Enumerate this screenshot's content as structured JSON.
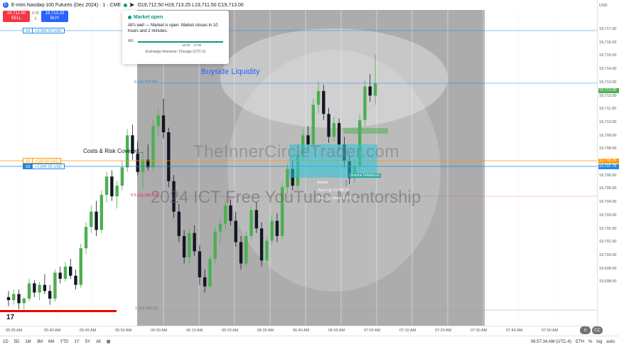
{
  "header": {
    "symbol_icon": "E",
    "symbol_text": "E-mini Nasdaq-100 Futures (Dec 2024) · 1 · CME",
    "ohlc": "O19,712.50 H19,713.25 L19,711.50 C19,713.00",
    "status_color": "#089981"
  },
  "trade": {
    "sell_price": "19,712.50",
    "sell_label": "SELL",
    "spread": "0.75",
    "buy_price": "19,713.25",
    "buy_label": "BUY",
    "qty": "2"
  },
  "tooltip": {
    "title": "Market open",
    "body": "All's well — Market is open. Market closes in 10 hours and 2 minutes.",
    "day": "MN",
    "hour1": "16:00",
    "hour2": "17:00",
    "timezone": "Exchange timezone: Chicago (UTC-5)"
  },
  "positions": {
    "top": {
      "qty": "18",
      "value": "+3,300.00 USD",
      "color": "#1e88e5"
    },
    "tp": {
      "qty": "18",
      "value": "+150.00 USD",
      "color": "#ff9800"
    },
    "entry": {
      "qty": "18",
      "value": "+1,840.00 USD",
      "color": "#1e88e5"
    }
  },
  "annotations": {
    "buyside": "Buyside Liquidity",
    "costs": "Costs & Risk Covered...",
    "fib0": "0 (19,713.50)",
    "fib05": "0.5 (19,706.50)",
    "fib1": "1 (19,698.25)",
    "fvg": "Volume Imbalance",
    "ashwin": "Ashwin",
    "buy_note": "Buy 6 @ 19,708.25",
    "key_note": "Key Sell Stop 19,707.00"
  },
  "watermark": {
    "site": "TheInnerCircleTrader.com",
    "course": "2024 ICT Free YouTube Mentorship"
  },
  "price_axis": {
    "currency": "USD",
    "labels": [
      "19,717.00",
      "19,716.00",
      "19,715.00",
      "19,714.00",
      "19,713.00",
      "19,712.00",
      "19,711.00",
      "19,710.00",
      "19,709.00",
      "19,708.00",
      "19,707.00",
      "19,706.00",
      "19,705.00",
      "19,704.00",
      "19,703.00",
      "19,702.00",
      "19,701.00",
      "19,700.00",
      "19,699.00",
      "19,698.00"
    ],
    "current": "19,713.00",
    "tp_tag": "19,708.25",
    "entry_tag": "19,707.75"
  },
  "time_axis": [
    "05:35 AM",
    "05:40 AM",
    "05:45 AM",
    "05:50 AM",
    "06:00 AM",
    "06:10 AM",
    "06:20 AM",
    "06:30 AM",
    "06:40 AM",
    "06:50 AM",
    "07:00 AM",
    "07:10 AM",
    "07:20 AM",
    "07:30 AM",
    "07:40 AM",
    "07:50 AM"
  ],
  "bottom": {
    "ranges": [
      "1D",
      "5D",
      "1M",
      "3M",
      "6M",
      "YTD",
      "1Y",
      "5Y",
      "All"
    ],
    "clock": "06:57:34 AM (UTC-4)",
    "session": "ETH",
    "pct": "%",
    "log": "log",
    "auto": "auto"
  },
  "video": {
    "pause": "II",
    "cc": "CC"
  },
  "tv_logo": "17",
  "chart_data": {
    "type": "candlestick",
    "y_range": [
      19697.5,
      19718
    ],
    "candles": [
      [
        19699.0,
        19699.4,
        19698.4,
        19698.8
      ],
      [
        19698.8,
        19699.5,
        19698.5,
        19699.2
      ],
      [
        19699.2,
        19699.5,
        19698.2,
        19698.6
      ],
      [
        19698.6,
        19699.0,
        19698.0,
        19698.9
      ],
      [
        19698.9,
        19700.2,
        19698.7,
        19699.9
      ],
      [
        19699.9,
        19700.1,
        19699.0,
        19699.3
      ],
      [
        19699.3,
        19700.0,
        19698.8,
        19699.8
      ],
      [
        19699.8,
        19700.5,
        19699.2,
        19699.4
      ],
      [
        19699.4,
        19699.8,
        19698.5,
        19698.9
      ],
      [
        19698.9,
        19700.8,
        19698.7,
        19700.6
      ],
      [
        19700.6,
        19701.0,
        19699.9,
        19700.2
      ],
      [
        19700.2,
        19701.3,
        19700.0,
        19701.0
      ],
      [
        19701.0,
        19701.5,
        19700.2,
        19700.4
      ],
      [
        19700.4,
        19700.8,
        19699.5,
        19699.8
      ],
      [
        19699.8,
        19702.5,
        19699.6,
        19702.2
      ],
      [
        19702.2,
        19703.9,
        19701.8,
        19703.6
      ],
      [
        19703.6,
        19705.0,
        19703.2,
        19704.6
      ],
      [
        19704.6,
        19705.3,
        19703.0,
        19703.4
      ],
      [
        19703.4,
        19706.0,
        19703.2,
        19705.7
      ],
      [
        19705.7,
        19707.2,
        19705.2,
        19706.9
      ],
      [
        19706.9,
        19707.3,
        19705.3,
        19705.6
      ],
      [
        19705.6,
        19706.6,
        19704.8,
        19706.3
      ],
      [
        19706.3,
        19707.9,
        19706.0,
        19707.5
      ],
      [
        19707.5,
        19710.0,
        19707.2,
        19709.6
      ],
      [
        19709.6,
        19710.3,
        19708.0,
        19708.4
      ],
      [
        19708.4,
        19709.2,
        19707.0,
        19707.2
      ],
      [
        19707.2,
        19708.5,
        19706.1,
        19708.0
      ],
      [
        19708.0,
        19709.0,
        19707.3,
        19707.5
      ],
      [
        19707.5,
        19710.6,
        19707.3,
        19710.2
      ],
      [
        19710.2,
        19711.4,
        19709.5,
        19710.9
      ],
      [
        19710.9,
        19712.0,
        19709.4,
        19709.8
      ],
      [
        19709.8,
        19710.1,
        19706.2,
        19706.6
      ],
      [
        19706.6,
        19707.0,
        19704.2,
        19704.6
      ],
      [
        19704.6,
        19705.1,
        19702.6,
        19703.0
      ],
      [
        19703.0,
        19703.4,
        19701.2,
        19701.6
      ],
      [
        19701.6,
        19703.5,
        19701.2,
        19703.2
      ],
      [
        19703.2,
        19703.7,
        19701.7,
        19702.0
      ],
      [
        19702.0,
        19702.4,
        19699.8,
        19700.3
      ],
      [
        19700.3,
        19700.8,
        19699.3,
        19699.7
      ],
      [
        19699.7,
        19701.8,
        19699.5,
        19701.5
      ],
      [
        19701.5,
        19703.6,
        19701.2,
        19703.3
      ],
      [
        19703.3,
        19704.2,
        19702.5,
        19703.8
      ],
      [
        19703.8,
        19705.3,
        19703.4,
        19705.0
      ],
      [
        19705.0,
        19705.4,
        19703.7,
        19704.0
      ],
      [
        19704.0,
        19704.6,
        19702.3,
        19702.6
      ],
      [
        19702.6,
        19703.0,
        19700.8,
        19701.2
      ],
      [
        19701.2,
        19703.3,
        19701.0,
        19703.0
      ],
      [
        19703.0,
        19705.0,
        19702.7,
        19704.7
      ],
      [
        19704.7,
        19705.2,
        19703.2,
        19703.5
      ],
      [
        19703.5,
        19703.9,
        19701.0,
        19701.4
      ],
      [
        19701.4,
        19703.0,
        19701.1,
        19702.7
      ],
      [
        19702.7,
        19704.4,
        19702.4,
        19704.0
      ],
      [
        19704.0,
        19704.5,
        19702.6,
        19703.0
      ],
      [
        19703.0,
        19706.5,
        19702.8,
        19706.2
      ],
      [
        19706.2,
        19707.7,
        19705.8,
        19707.4
      ],
      [
        19707.4,
        19708.0,
        19706.0,
        19706.3
      ],
      [
        19706.3,
        19708.6,
        19706.0,
        19708.3
      ],
      [
        19708.3,
        19710.0,
        19707.9,
        19709.6
      ],
      [
        19709.6,
        19710.2,
        19708.6,
        19709.0
      ],
      [
        19709.0,
        19712.0,
        19708.7,
        19711.6
      ],
      [
        19711.6,
        19713.1,
        19711.0,
        19712.5
      ],
      [
        19712.5,
        19712.9,
        19710.6,
        19711.0
      ],
      [
        19711.0,
        19711.4,
        19709.1,
        19709.5
      ],
      [
        19709.5,
        19710.8,
        19709.2,
        19710.4
      ],
      [
        19710.4,
        19710.7,
        19708.6,
        19709.0
      ],
      [
        19709.0,
        19709.5,
        19707.5,
        19707.9
      ],
      [
        19707.9,
        19708.3,
        19706.4,
        19706.8
      ],
      [
        19706.8,
        19708.0,
        19706.5,
        19707.6
      ],
      [
        19707.6,
        19711.0,
        19707.3,
        19710.6
      ],
      [
        19710.6,
        19713.2,
        19710.2,
        19712.8
      ],
      [
        19712.8,
        19713.6,
        19711.8,
        19712.2
      ],
      [
        19712.2,
        19714.9,
        19711.6,
        19713.0
      ]
    ]
  }
}
